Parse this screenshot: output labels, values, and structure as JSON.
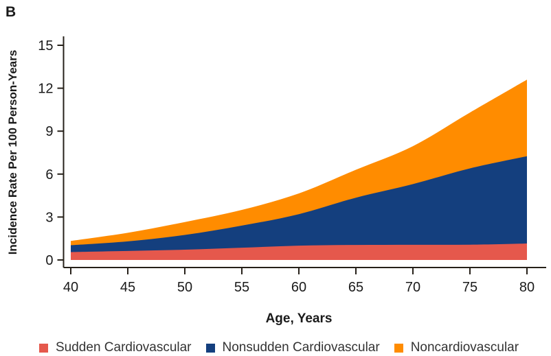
{
  "figure": {
    "panel_label": "B"
  },
  "chart_data": {
    "type": "area",
    "stacked": true,
    "title": "",
    "xlabel": "Age, Years",
    "ylabel": "Incidence Rate Per 100 Person-Years",
    "xlim": [
      40,
      80
    ],
    "ylim": [
      0,
      15
    ],
    "x_ticks": [
      "40",
      "45",
      "50",
      "55",
      "60",
      "65",
      "70",
      "75",
      "80"
    ],
    "y_ticks": [
      "0",
      "3",
      "6",
      "9",
      "12",
      "15"
    ],
    "grid": false,
    "legend_position": "bottom",
    "x": [
      40,
      45,
      50,
      55,
      60,
      65,
      70,
      75,
      80
    ],
    "series": [
      {
        "name": "Sudden Cardiovascular",
        "color": "#E5584C",
        "values": [
          0.55,
          0.63,
          0.72,
          0.86,
          1.0,
          1.05,
          1.06,
          1.07,
          1.15
        ]
      },
      {
        "name": "Nonsudden Cardiovascular",
        "color": "#143F7E",
        "values": [
          0.48,
          0.67,
          1.03,
          1.54,
          2.2,
          3.3,
          4.24,
          5.33,
          6.1
        ]
      },
      {
        "name": "Noncardiovascular",
        "color": "#FF8C00",
        "values": [
          0.3,
          0.6,
          0.9,
          1.1,
          1.45,
          1.95,
          2.65,
          3.9,
          5.35
        ]
      }
    ],
    "cumulative_tops": {
      "sudden": [
        0.55,
        0.63,
        0.72,
        0.86,
        1.0,
        1.05,
        1.06,
        1.07,
        1.15
      ],
      "nonsudden": [
        1.03,
        1.3,
        1.75,
        2.4,
        3.2,
        4.35,
        5.3,
        6.4,
        7.25
      ],
      "total": [
        1.33,
        1.9,
        2.65,
        3.5,
        4.65,
        6.3,
        7.95,
        10.3,
        12.6
      ]
    },
    "axis_color": "#262019",
    "tick_label_color": "#1a1a1a"
  },
  "legend": {
    "items": [
      {
        "label": "Sudden Cardiovascular"
      },
      {
        "label": "Nonsudden Cardiovascular"
      },
      {
        "label": "Noncardiovascular"
      }
    ]
  }
}
